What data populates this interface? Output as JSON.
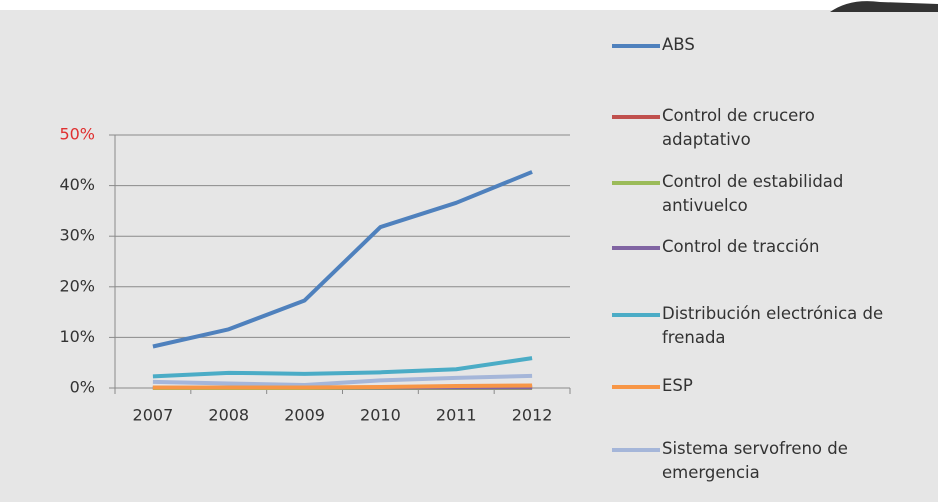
{
  "chart_data": {
    "type": "line",
    "categories": [
      "2007",
      "2008",
      "2009",
      "2010",
      "2011",
      "2012"
    ],
    "series": [
      {
        "name": "ABS",
        "color": "#4f81bd",
        "values": [
          8.2,
          11.6,
          17.3,
          31.8,
          36.6,
          42.7
        ]
      },
      {
        "name": "Control de crucero adaptativo",
        "color": "#c0504d",
        "values": [
          0,
          0,
          0,
          0,
          0.1,
          0.2
        ]
      },
      {
        "name": "Control de estabilidad antivuelco",
        "color": "#9bbb59",
        "values": [
          0,
          0,
          0,
          0,
          0,
          0
        ]
      },
      {
        "name": "Control de tracción",
        "color": "#8064a2",
        "values": [
          0.1,
          0.1,
          0.1,
          0.1,
          0.1,
          0.1
        ]
      },
      {
        "name": "Distribución electrónica de frenada",
        "color": "#4bacc6",
        "values": [
          2.3,
          3.0,
          2.8,
          3.1,
          3.7,
          5.9
        ]
      },
      {
        "name": "ESP",
        "color": "#f79646",
        "values": [
          0.1,
          0.1,
          0.1,
          0.2,
          0.4,
          0.5
        ]
      },
      {
        "name": "Sistema servofreno de emergencia",
        "color": "#a5b6d9",
        "values": [
          1.2,
          0.9,
          0.6,
          1.5,
          2.0,
          2.4
        ]
      }
    ],
    "ylim": [
      0,
      50
    ],
    "yticks": [
      {
        "value": 0,
        "label": "0%"
      },
      {
        "value": 10,
        "label": "10%"
      },
      {
        "value": 20,
        "label": "20%"
      },
      {
        "value": 30,
        "label": "30%"
      },
      {
        "value": 40,
        "label": "40%"
      },
      {
        "value": 50,
        "label": "50%"
      }
    ],
    "grid": true,
    "legend": "right"
  }
}
